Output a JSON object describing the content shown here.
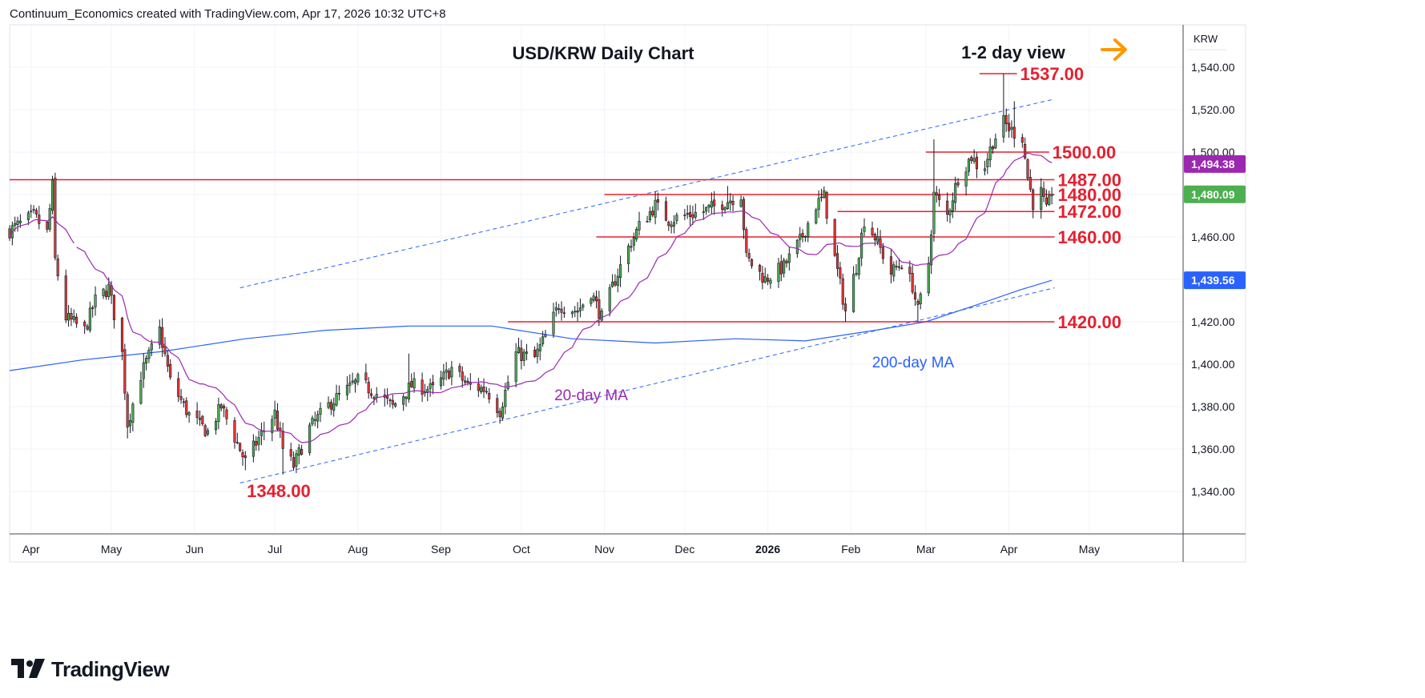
{
  "header": {
    "caption": "Continuum_Economics created with TradingView.com, Apr 17, 2026 10:32 UTC+8"
  },
  "brand": {
    "name": "TradingView",
    "icon": "tradingview-logo-icon"
  },
  "colors": {
    "up": "#4caf50",
    "down": "#e53935",
    "wick": "#131722",
    "level": "#e5202f",
    "level_text": "#e5202f",
    "ma20": "#9c27b0",
    "ma200": "#2962ff",
    "trend": "#2962ff",
    "arrow": "#ff9800",
    "grid": "#f0f3fa"
  },
  "chart_data": {
    "type": "candlestick",
    "title": "USD/KRW Daily Chart",
    "subtitle": "1-2 day view",
    "currency_label": "KRW",
    "y_range": [
      1320,
      1560
    ],
    "y_ticks": [
      1340,
      1360,
      1380,
      1400,
      1420,
      1440,
      1460,
      1480,
      1500,
      1520,
      1540
    ],
    "y_tick_labels": [
      "1,340.00",
      "1,360.00",
      "1,380.00",
      "1,400.00",
      "1,420.00",
      "1,440.00",
      "1,460.00",
      "1,480.00",
      "1,500.00",
      "1,520.00",
      "1,540.00"
    ],
    "x_range": [
      "2025-03-24",
      "2026-06-05"
    ],
    "x_ticks": [
      {
        "date": "2025-04-01",
        "label": "Apr",
        "bold": false
      },
      {
        "date": "2025-05-01",
        "label": "May",
        "bold": false
      },
      {
        "date": "2025-06-01",
        "label": "Jun",
        "bold": false
      },
      {
        "date": "2025-07-01",
        "label": "Jul",
        "bold": false
      },
      {
        "date": "2025-08-01",
        "label": "Aug",
        "bold": false
      },
      {
        "date": "2025-09-01",
        "label": "Sep",
        "bold": false
      },
      {
        "date": "2025-10-01",
        "label": "Oct",
        "bold": false
      },
      {
        "date": "2025-11-01",
        "label": "Nov",
        "bold": false
      },
      {
        "date": "2025-12-01",
        "label": "Dec",
        "bold": false
      },
      {
        "date": "2026-01-01",
        "label": "2026",
        "bold": true
      },
      {
        "date": "2026-02-01",
        "label": "Feb",
        "bold": false
      },
      {
        "date": "2026-03-01",
        "label": "Mar",
        "bold": false
      },
      {
        "date": "2026-04-01",
        "label": "Apr",
        "bold": false
      },
      {
        "date": "2026-05-01",
        "label": "May",
        "bold": false
      }
    ],
    "price_path": [
      [
        "2025-03-24",
        1463
      ],
      [
        "2025-04-02",
        1470
      ],
      [
        "2025-04-07",
        1462
      ],
      [
        "2025-04-09",
        1484
      ],
      [
        "2025-04-10",
        1449
      ],
      [
        "2025-04-14",
        1422
      ],
      [
        "2025-04-21",
        1416
      ],
      [
        "2025-04-25",
        1430
      ],
      [
        "2025-04-30",
        1436
      ],
      [
        "2025-05-05",
        1405
      ],
      [
        "2025-05-07",
        1372
      ],
      [
        "2025-05-12",
        1395
      ],
      [
        "2025-05-19",
        1416
      ],
      [
        "2025-05-23",
        1392
      ],
      [
        "2025-05-30",
        1376
      ],
      [
        "2025-06-06",
        1368
      ],
      [
        "2025-06-11",
        1380
      ],
      [
        "2025-06-20",
        1354
      ],
      [
        "2025-06-25",
        1365
      ],
      [
        "2025-07-01",
        1377
      ],
      [
        "2025-07-04",
        1360
      ],
      [
        "2025-07-08",
        1352
      ],
      [
        "2025-07-14",
        1370
      ],
      [
        "2025-07-22",
        1382
      ],
      [
        "2025-08-01",
        1392
      ],
      [
        "2025-08-08",
        1386
      ],
      [
        "2025-08-14",
        1380
      ],
      [
        "2025-08-21",
        1390
      ],
      [
        "2025-08-29",
        1388
      ],
      [
        "2025-09-05",
        1398
      ],
      [
        "2025-09-11",
        1390
      ],
      [
        "2025-09-18",
        1388
      ],
      [
        "2025-09-23",
        1378
      ],
      [
        "2025-09-29",
        1405
      ],
      [
        "2025-10-06",
        1403
      ],
      [
        "2025-10-10",
        1413
      ],
      [
        "2025-10-15",
        1428
      ],
      [
        "2025-10-22",
        1425
      ],
      [
        "2025-10-27",
        1434
      ],
      [
        "2025-10-31",
        1422
      ],
      [
        "2025-11-05",
        1440
      ],
      [
        "2025-11-10",
        1455
      ],
      [
        "2025-11-14",
        1465
      ],
      [
        "2025-11-20",
        1475
      ],
      [
        "2025-11-25",
        1468
      ],
      [
        "2025-12-01",
        1470
      ],
      [
        "2025-12-08",
        1472
      ],
      [
        "2025-12-15",
        1476
      ],
      [
        "2025-12-22",
        1480
      ],
      [
        "2025-12-24",
        1450
      ],
      [
        "2025-12-31",
        1440
      ],
      [
        "2026-01-07",
        1446
      ],
      [
        "2026-01-13",
        1458
      ],
      [
        "2026-01-19",
        1475
      ],
      [
        "2026-01-22",
        1479
      ],
      [
        "2026-01-26",
        1450
      ],
      [
        "2026-01-30",
        1425
      ],
      [
        "2026-02-03",
        1446
      ],
      [
        "2026-02-06",
        1468
      ],
      [
        "2026-02-10",
        1460
      ],
      [
        "2026-02-16",
        1443
      ],
      [
        "2026-02-20",
        1448
      ],
      [
        "2026-02-24",
        1437
      ],
      [
        "2026-02-26",
        1425
      ],
      [
        "2026-03-02",
        1448
      ],
      [
        "2026-03-04",
        1480
      ],
      [
        "2026-03-09",
        1470
      ],
      [
        "2026-03-13",
        1488
      ],
      [
        "2026-03-18",
        1498
      ],
      [
        "2026-03-22",
        1490
      ],
      [
        "2026-03-26",
        1505
      ],
      [
        "2026-03-30",
        1514
      ],
      [
        "2026-04-02",
        1510
      ],
      [
        "2026-04-06",
        1507
      ],
      [
        "2026-04-08",
        1488
      ],
      [
        "2026-04-10",
        1476
      ],
      [
        "2026-04-13",
        1481
      ],
      [
        "2026-04-15",
        1472
      ],
      [
        "2026-04-17",
        1480
      ]
    ],
    "last_candle_date": "2026-04-17",
    "ma20_last": 1494.38,
    "ma200_last": 1439.56,
    "ma20_label": "20-day MA",
    "ma200_label": "200-day MA",
    "price_labels": [
      {
        "value": 1494.38,
        "text": "1,494.38",
        "color": "#9c27b0"
      },
      {
        "value": 1480.09,
        "text": "1,480.09",
        "color": "#4caf50"
      },
      {
        "value": 1439.56,
        "text": "1,439.56",
        "color": "#2962ff"
      }
    ],
    "levels": [
      {
        "value": 1537,
        "label": "1537.00",
        "from": "2026-03-21",
        "to": "2026-04-04"
      },
      {
        "value": 1500,
        "label": "1500.00",
        "from": "2026-03-01",
        "to": "2026-04-16"
      },
      {
        "value": 1487,
        "label": "1487.00",
        "from": "2025-03-24",
        "to": "2026-04-18"
      },
      {
        "value": 1480,
        "label": "1480.00",
        "from": "2025-11-01",
        "to": "2026-04-18"
      },
      {
        "value": 1472,
        "label": "1472.00",
        "from": "2026-01-27",
        "to": "2026-04-18"
      },
      {
        "value": 1460,
        "label": "1460.00",
        "from": "2025-10-29",
        "to": "2026-04-18"
      },
      {
        "value": 1420,
        "label": "1420.00",
        "from": "2025-09-26",
        "to": "2026-04-18"
      }
    ],
    "low_annotation": {
      "value": 1348,
      "label": "1348.00",
      "date": "2025-07-04"
    },
    "trend_channel": [
      {
        "from": [
          "2025-06-18",
          1344
        ],
        "to": [
          "2026-04-18",
          1436
        ]
      },
      {
        "from": [
          "2025-06-18",
          1436
        ],
        "to": [
          "2026-04-18",
          1525
        ]
      }
    ],
    "ma200_path": [
      [
        "2025-03-24",
        1397
      ],
      [
        "2025-04-20",
        1402
      ],
      [
        "2025-05-20",
        1406
      ],
      [
        "2025-06-20",
        1412
      ],
      [
        "2025-07-20",
        1416
      ],
      [
        "2025-08-20",
        1418
      ],
      [
        "2025-09-20",
        1418
      ],
      [
        "2025-10-20",
        1412
      ],
      [
        "2025-11-20",
        1410
      ],
      [
        "2025-12-20",
        1412
      ],
      [
        "2026-01-15",
        1411
      ],
      [
        "2026-02-10",
        1416
      ],
      [
        "2026-03-01",
        1420
      ],
      [
        "2026-03-20",
        1428
      ],
      [
        "2026-04-05",
        1435
      ],
      [
        "2026-04-17",
        1439.56
      ]
    ]
  }
}
